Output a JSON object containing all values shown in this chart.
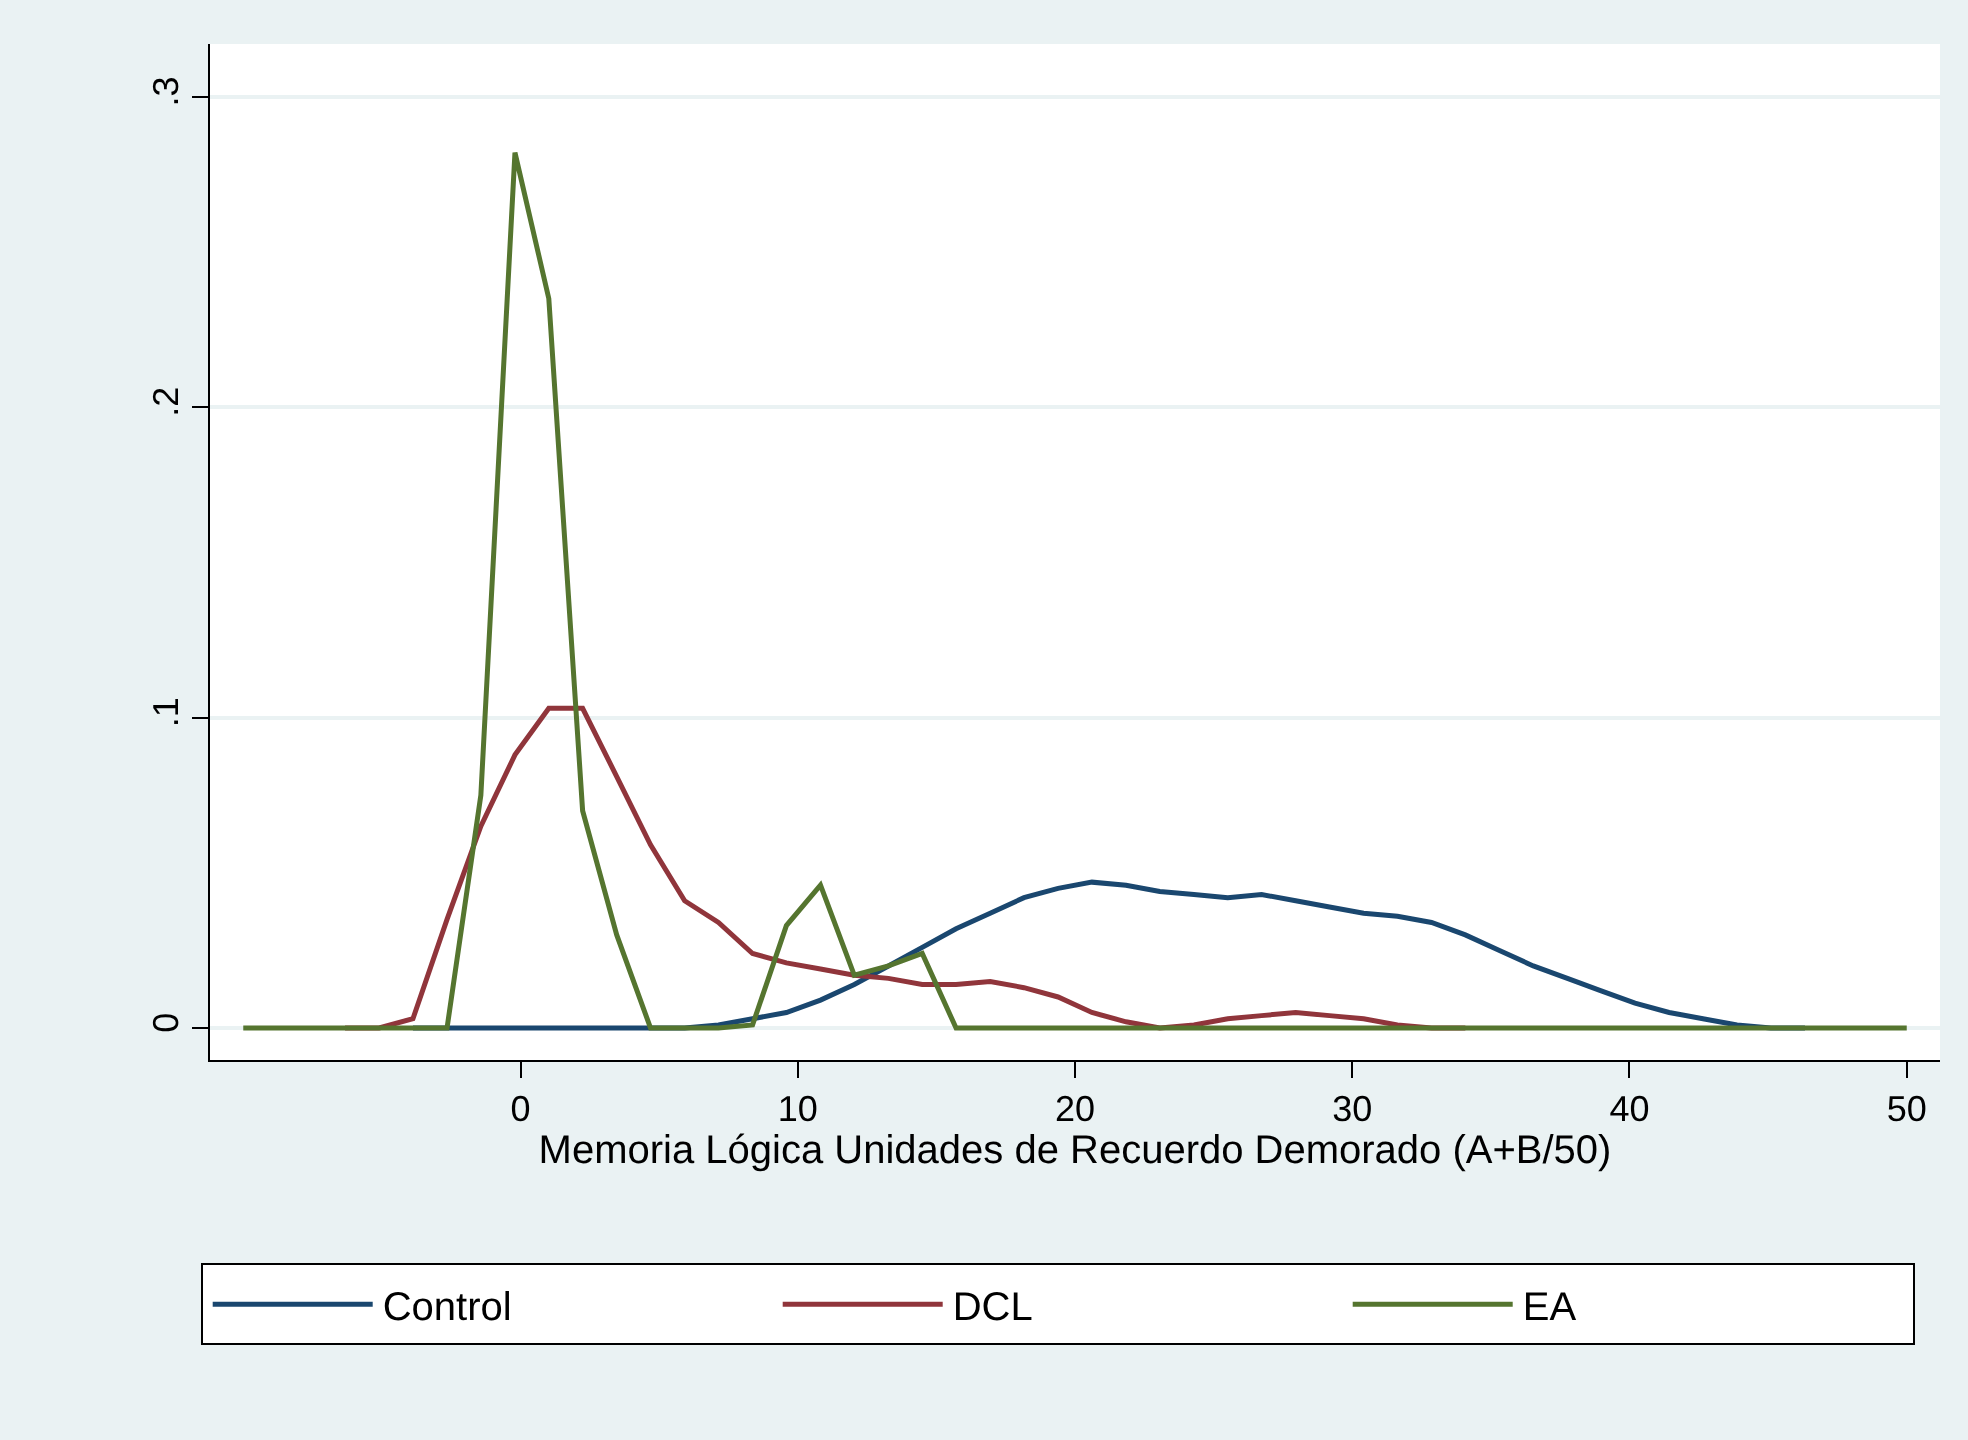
{
  "chart_data": {
    "type": "line",
    "xlabel": "Memoria Lógica Unidades de Recuerdo Demorado (A+B/50)",
    "x": [
      -10,
      -8.78,
      -7.55,
      -6.33,
      -5.1,
      -3.88,
      -2.65,
      -1.43,
      -0.2,
      1.02,
      2.24,
      3.47,
      4.69,
      5.92,
      7.14,
      8.37,
      9.59,
      10.82,
      12.04,
      13.27,
      14.49,
      15.71,
      16.94,
      18.16,
      19.39,
      20.61,
      21.84,
      23.06,
      24.29,
      25.51,
      26.73,
      27.96,
      29.18,
      30.41,
      31.63,
      32.86,
      34.08,
      35.31,
      36.53,
      37.76,
      38.98,
      40.2,
      41.43,
      42.65,
      43.88,
      45.1,
      46.33,
      47.55,
      48.78,
      50
    ],
    "series": [
      {
        "name": "Control",
        "color": "#1a476f",
        "values": [
          null,
          null,
          null,
          null,
          null,
          0,
          0,
          0,
          0,
          0,
          0,
          0,
          0,
          0,
          0.001,
          0.003,
          0.005,
          0.009,
          0.014,
          0.02,
          0.026,
          0.032,
          0.037,
          0.042,
          0.045,
          0.047,
          0.046,
          0.044,
          0.043,
          0.042,
          0.043,
          0.041,
          0.039,
          0.037,
          0.036,
          0.034,
          0.03,
          0.025,
          0.02,
          0.016,
          0.012,
          0.008,
          0.005,
          0.003,
          0.001,
          0,
          0,
          null,
          null,
          null
        ]
      },
      {
        "name": "DCL",
        "color": "#90353b",
        "values": [
          null,
          null,
          null,
          0,
          0,
          0.003,
          0.035,
          0.065,
          0.088,
          0.103,
          0.103,
          0.081,
          0.059,
          0.041,
          0.034,
          0.024,
          0.021,
          0.019,
          0.017,
          0.016,
          0.014,
          0.014,
          0.015,
          0.013,
          0.01,
          0.005,
          0.002,
          0,
          0.001,
          0.003,
          0.004,
          0.005,
          0.004,
          0.003,
          0.001,
          0,
          0,
          null,
          null,
          null,
          null,
          null,
          null,
          null,
          null,
          null,
          null,
          null,
          null,
          null
        ]
      },
      {
        "name": "EA",
        "color": "#55752f",
        "values": [
          0,
          0,
          0,
          0,
          0,
          0,
          0,
          0.075,
          0.282,
          0.235,
          0.07,
          0.03,
          0,
          0,
          0,
          0.001,
          0.033,
          0.046,
          0.017,
          0.02,
          0.024,
          0,
          0,
          0,
          0,
          0,
          0,
          0,
          0,
          0,
          0,
          0,
          0,
          0,
          0,
          0,
          0,
          0,
          0,
          0,
          0,
          0,
          0,
          0,
          0,
          0,
          0,
          0,
          0,
          0
        ]
      }
    ],
    "xlim": [
      -11.2,
      51.2
    ],
    "xticks": [
      0,
      10,
      20,
      30,
      40,
      50
    ],
    "ylim": [
      -0.0103,
      0.317
    ],
    "yticks": [
      0,
      {
        "value": 0.1,
        "label": ".1"
      },
      {
        "value": 0.2,
        "label": ".2"
      },
      {
        "value": 0.3,
        "label": ".3"
      }
    ],
    "grid": "y",
    "legend": "bottom",
    "marker": "none",
    "line_style": "solid"
  }
}
